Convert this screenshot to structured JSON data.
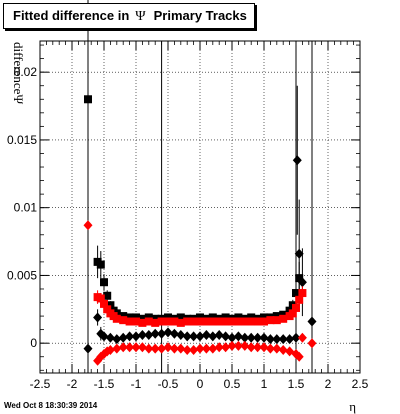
{
  "title": {
    "prefix": "Fitted difference in",
    "symbol": "Ψ",
    "suffix": "Primary Tracks"
  },
  "footer": {
    "timestamp": "Wed Oct  8 18:30:39 2014"
  },
  "chart_data": {
    "type": "scatter",
    "title": "Fitted difference in Ψ Primary Tracks",
    "xlabel": "η",
    "ylabel": "differenceΨ",
    "xlim": [
      -2.5,
      2.5
    ],
    "ylim": [
      -0.0022,
      0.0223
    ],
    "x_ticks": [
      "-2.5",
      "-2",
      "-1.5",
      "-1",
      "-0.5",
      "0",
      "0.5",
      "1",
      "1.5",
      "2",
      "2.5"
    ],
    "x_tick_values": [
      -2.5,
      -2,
      -1.5,
      -1,
      -0.5,
      0,
      0.5,
      1,
      1.5,
      2,
      2.5
    ],
    "y_ticks": [
      "0",
      "0.005",
      "0.01",
      "0.015",
      "0.02"
    ],
    "y_tick_values": [
      0,
      0.005,
      0.01,
      0.015,
      0.02
    ],
    "grid": true,
    "colors": {
      "black": "#000000",
      "red": "#ff0000"
    },
    "vertical_lines": [
      -1.75,
      -0.6,
      1.5,
      1.75
    ],
    "series": [
      {
        "marker": "square",
        "color": "#000000",
        "x": [
          -1.75,
          -1.6,
          -1.55,
          -1.5,
          -1.45,
          -1.4,
          -1.35,
          -1.3,
          -1.2,
          -1.1,
          -1.0,
          -0.9,
          -0.8,
          -0.7,
          -0.6,
          -0.5,
          -0.4,
          -0.3,
          -0.2,
          -0.1,
          0.0,
          0.1,
          0.2,
          0.3,
          0.4,
          0.5,
          0.6,
          0.7,
          0.8,
          0.9,
          1.0,
          1.1,
          1.2,
          1.3,
          1.4,
          1.45,
          1.5,
          1.55
        ],
        "y": [
          0.018,
          0.006,
          0.0058,
          0.0045,
          0.0035,
          0.0028,
          0.0024,
          0.0022,
          0.002,
          0.0019,
          0.0019,
          0.0018,
          0.0019,
          0.0018,
          0.0018,
          0.0019,
          0.0018,
          0.0019,
          0.0018,
          0.0018,
          0.0019,
          0.0018,
          0.0019,
          0.0018,
          0.0019,
          0.0018,
          0.0019,
          0.0018,
          0.0019,
          0.0018,
          0.0019,
          0.0019,
          0.002,
          0.0021,
          0.0024,
          0.0028,
          0.0037,
          0.0048
        ],
        "yerr": [
          0.0115,
          0.0012,
          0.001,
          0.0006,
          0.0004,
          0.0003,
          0.0002,
          0.0002,
          0.0001,
          0.0001,
          0.0001,
          0.0001,
          0.0001,
          0.0001,
          0.0001,
          0.0001,
          0.0001,
          0.0001,
          0.0001,
          0.0001,
          0.0001,
          0.0001,
          0.0001,
          0.0001,
          0.0001,
          0.0001,
          0.0001,
          0.0001,
          0.0001,
          0.0001,
          0.0001,
          0.0001,
          0.0001,
          0.0002,
          0.0003,
          0.0004,
          0.0006,
          0.0012
        ]
      },
      {
        "marker": "diamond",
        "color": "#000000",
        "x": [
          -1.75,
          -1.6,
          -1.55,
          -1.5,
          -1.4,
          -1.3,
          -1.2,
          -1.1,
          -1.0,
          -0.9,
          -0.8,
          -0.7,
          -0.6,
          -0.5,
          -0.4,
          -0.3,
          -0.2,
          -0.1,
          0.0,
          0.1,
          0.2,
          0.3,
          0.4,
          0.5,
          0.6,
          0.7,
          0.8,
          0.9,
          1.0,
          1.1,
          1.2,
          1.3,
          1.4,
          1.5,
          1.52,
          1.55,
          1.6,
          1.75
        ],
        "y": [
          -0.0004,
          0.0019,
          0.0007,
          0.0005,
          0.0004,
          0.0003,
          0.0004,
          0.0005,
          0.0005,
          0.0006,
          0.0006,
          0.0007,
          0.0007,
          0.0008,
          0.0007,
          0.0006,
          0.0005,
          0.0005,
          0.0005,
          0.0006,
          0.0005,
          0.0006,
          0.0005,
          0.0004,
          0.0005,
          0.0004,
          0.0004,
          0.0004,
          0.0004,
          0.0003,
          0.0003,
          0.0003,
          0.0003,
          0.0004,
          0.0135,
          0.0066,
          0.0045,
          0.0016
        ],
        "yerr": [
          0.0,
          0.0006,
          0.0005,
          0.0003,
          0.0002,
          0.0002,
          0.0001,
          0.0001,
          0.0001,
          0.0001,
          0.0001,
          0.0001,
          0.0001,
          0.0001,
          0.0001,
          0.0001,
          0.0001,
          0.0001,
          0.0001,
          0.0001,
          0.0001,
          0.0001,
          0.0001,
          0.0001,
          0.0001,
          0.0001,
          0.0001,
          0.0001,
          0.0001,
          0.0001,
          0.0001,
          0.0001,
          0.0002,
          0.0004,
          0.0055,
          0.004,
          0.0025,
          0.0
        ]
      },
      {
        "marker": "square",
        "color": "#ff0000",
        "x": [
          -1.6,
          -1.55,
          -1.5,
          -1.45,
          -1.4,
          -1.35,
          -1.3,
          -1.2,
          -1.1,
          -1.0,
          -0.9,
          -0.8,
          -0.7,
          -0.6,
          -0.5,
          -0.4,
          -0.3,
          -0.2,
          -0.1,
          0.0,
          0.1,
          0.2,
          0.3,
          0.4,
          0.5,
          0.6,
          0.7,
          0.8,
          0.9,
          1.0,
          1.1,
          1.2,
          1.3,
          1.4,
          1.45,
          1.5,
          1.55,
          1.6
        ],
        "y": [
          0.0034,
          0.0033,
          0.0029,
          0.0025,
          0.0022,
          0.002,
          0.0018,
          0.0017,
          0.0016,
          0.0016,
          0.0015,
          0.0016,
          0.0015,
          0.0016,
          0.0016,
          0.0016,
          0.0015,
          0.0016,
          0.0016,
          0.0016,
          0.0016,
          0.0016,
          0.0016,
          0.0016,
          0.0016,
          0.0016,
          0.0016,
          0.0016,
          0.0016,
          0.0016,
          0.0017,
          0.0017,
          0.0018,
          0.002,
          0.0022,
          0.0026,
          0.0032,
          0.0037
        ],
        "yerr": [
          0.0005,
          0.0004,
          0.0003,
          0.0002,
          0.0002,
          0.0001,
          0.0001,
          0.0001,
          0.0001,
          0.0001,
          0.0001,
          0.0001,
          0.0001,
          0.0001,
          0.0001,
          0.0001,
          0.0001,
          0.0001,
          0.0001,
          0.0001,
          0.0001,
          0.0001,
          0.0001,
          0.0001,
          0.0001,
          0.0001,
          0.0001,
          0.0001,
          0.0001,
          0.0001,
          0.0001,
          0.0001,
          0.0001,
          0.0002,
          0.0002,
          0.0003,
          0.0004,
          0.0005
        ]
      },
      {
        "marker": "diamond",
        "color": "#ff0000",
        "x": [
          -1.75,
          -1.6,
          -1.55,
          -1.5,
          -1.45,
          -1.4,
          -1.3,
          -1.2,
          -1.1,
          -1.0,
          -0.9,
          -0.8,
          -0.7,
          -0.6,
          -0.5,
          -0.4,
          -0.3,
          -0.2,
          -0.1,
          0.0,
          0.1,
          0.2,
          0.3,
          0.4,
          0.5,
          0.6,
          0.7,
          0.8,
          0.9,
          1.0,
          1.1,
          1.2,
          1.3,
          1.4,
          1.5,
          1.55,
          1.6,
          1.75
        ],
        "y": [
          0.0087,
          -0.0013,
          -0.001,
          -0.0008,
          -0.0006,
          -0.0005,
          -0.0004,
          -0.0003,
          -0.0003,
          -0.0003,
          -0.0003,
          -0.0004,
          -0.0004,
          -0.0004,
          -0.0003,
          -0.0004,
          -0.0004,
          -0.0005,
          -0.0005,
          -0.0004,
          -0.0004,
          -0.0004,
          -0.0003,
          -0.0003,
          -0.0002,
          -0.0002,
          -0.0002,
          -0.0003,
          -0.0003,
          -0.0003,
          -0.0004,
          -0.0004,
          -0.0005,
          -0.0006,
          -0.0008,
          -0.001,
          0.0004,
          0.0
        ],
        "yerr": [
          0.0,
          0.0002,
          0.0002,
          0.0002,
          0.0001,
          0.0001,
          0.0001,
          0.0001,
          0.0001,
          0.0001,
          0.0001,
          0.0001,
          0.0001,
          0.0001,
          0.0001,
          0.0001,
          0.0001,
          0.0001,
          0.0001,
          0.0001,
          0.0001,
          0.0001,
          0.0001,
          0.0001,
          0.0001,
          0.0001,
          0.0001,
          0.0001,
          0.0001,
          0.0001,
          0.0001,
          0.0001,
          0.0001,
          0.0001,
          0.0002,
          0.0002,
          0.0003,
          0.0
        ]
      }
    ]
  }
}
